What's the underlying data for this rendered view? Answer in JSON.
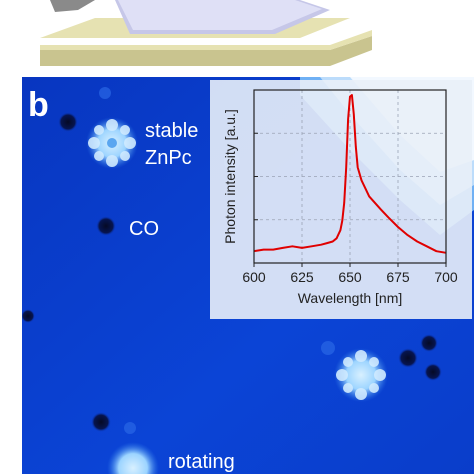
{
  "panel_label": "b",
  "annotations": {
    "stable": "stable",
    "znpc": "ZnPc",
    "co": "CO",
    "rotating": "rotating"
  },
  "colors": {
    "stm_background": "#0a3fd0",
    "inset_background": "#e9eff8",
    "spectrum_line": "#e00000",
    "substrate_slab": "#e6e2b2"
  },
  "chart_data": {
    "type": "line",
    "title": "",
    "xlabel": "Wavelength [nm]",
    "ylabel": "Photon intensity [a.u.]",
    "xlim": [
      600,
      700
    ],
    "xticks": [
      600,
      625,
      650,
      675,
      700
    ],
    "grid": true,
    "grid_style": "dashed",
    "show_ytick_labels": false,
    "series": [
      {
        "color": "#e00000",
        "x": [
          600,
          605,
          610,
          615,
          620,
          625,
          630,
          635,
          638,
          641,
          643,
          645,
          646,
          647,
          648,
          649,
          650,
          651,
          652,
          653,
          654,
          656,
          658,
          660,
          663,
          666,
          670,
          675,
          680,
          685,
          690,
          695,
          700
        ],
        "y": [
          0.03,
          0.04,
          0.04,
          0.05,
          0.06,
          0.05,
          0.06,
          0.07,
          0.08,
          0.09,
          0.11,
          0.16,
          0.22,
          0.33,
          0.55,
          0.85,
          0.99,
          1.0,
          0.88,
          0.68,
          0.55,
          0.47,
          0.42,
          0.37,
          0.33,
          0.29,
          0.24,
          0.18,
          0.13,
          0.09,
          0.06,
          0.03,
          0.02
        ]
      }
    ]
  }
}
